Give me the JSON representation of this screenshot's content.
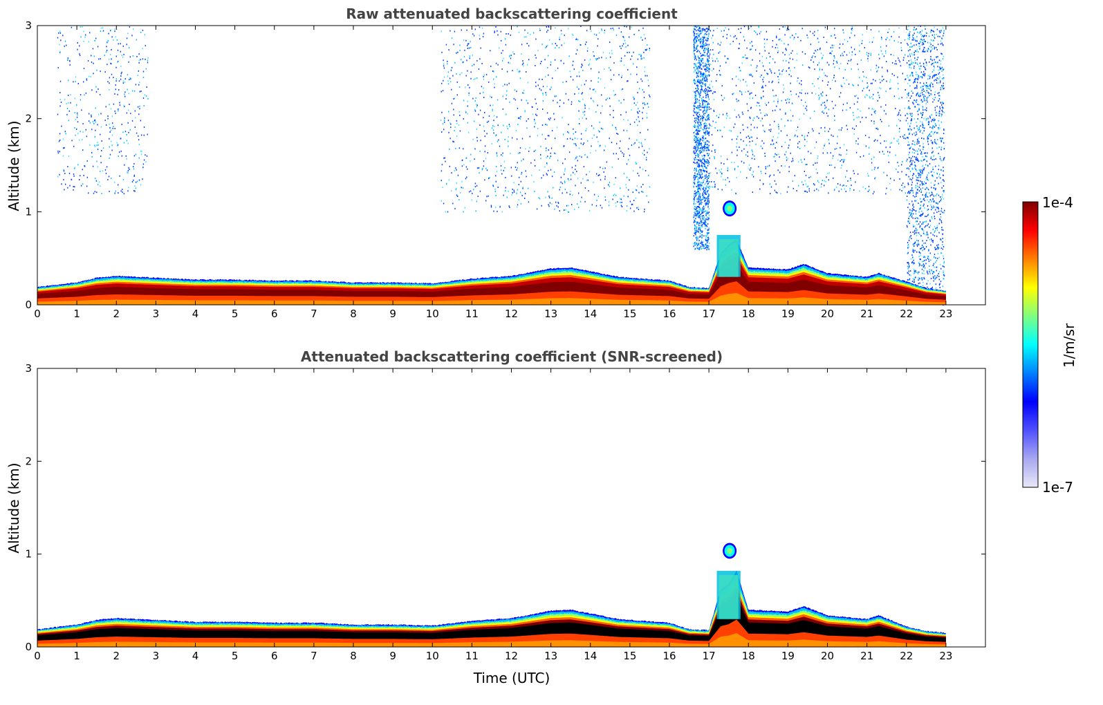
{
  "chart_data": [
    {
      "type": "heatmap",
      "title": "Raw attenuated backscattering coefficient",
      "xlabel": "",
      "ylabel": "Altitude (km)",
      "xlim": [
        0,
        24
      ],
      "ylim": [
        0,
        3
      ],
      "xticks": [
        0,
        1,
        2,
        3,
        4,
        5,
        6,
        7,
        8,
        9,
        10,
        11,
        12,
        13,
        14,
        15,
        16,
        17,
        18,
        19,
        20,
        21,
        22,
        23
      ],
      "yticks": [
        0,
        1,
        2,
        3
      ],
      "data_end_time": 23,
      "boundary_layer_top_km": [
        [
          0,
          0.19
        ],
        [
          1,
          0.24
        ],
        [
          1.5,
          0.29
        ],
        [
          2,
          0.31
        ],
        [
          3,
          0.29
        ],
        [
          4,
          0.27
        ],
        [
          5,
          0.27
        ],
        [
          6,
          0.26
        ],
        [
          7,
          0.26
        ],
        [
          8,
          0.24
        ],
        [
          9,
          0.24
        ],
        [
          10,
          0.23
        ],
        [
          11,
          0.28
        ],
        [
          12,
          0.31
        ],
        [
          13,
          0.39
        ],
        [
          13.5,
          0.4
        ],
        [
          14,
          0.36
        ],
        [
          14.7,
          0.3
        ],
        [
          15,
          0.29
        ],
        [
          16,
          0.26
        ],
        [
          16.5,
          0.19
        ],
        [
          17,
          0.18
        ],
        [
          17.3,
          0.55
        ],
        [
          17.5,
          0.65
        ],
        [
          17.7,
          0.7
        ],
        [
          18,
          0.4
        ],
        [
          19,
          0.38
        ],
        [
          19.4,
          0.44
        ],
        [
          20,
          0.34
        ],
        [
          21,
          0.3
        ],
        [
          21.3,
          0.34
        ],
        [
          22,
          0.25
        ],
        [
          22.5,
          0.18
        ],
        [
          23,
          0.15
        ]
      ],
      "noise_regions": [
        {
          "t_start": 0.5,
          "t_end": 2.8,
          "z_min": 1.2,
          "z_max": 3,
          "density": "low"
        },
        {
          "t_start": 10.2,
          "t_end": 15.5,
          "z_min": 1.0,
          "z_max": 3,
          "density": "medium"
        },
        {
          "t_start": 16.6,
          "t_end": 17.0,
          "z_min": 0.6,
          "z_max": 3,
          "density": "high"
        },
        {
          "t_start": 17.0,
          "t_end": 22.0,
          "z_min": 1.2,
          "z_max": 3,
          "density": "medium"
        },
        {
          "t_start": 22.0,
          "t_end": 22.95,
          "z_min": 0.0,
          "z_max": 3,
          "density": "high"
        }
      ],
      "features": [
        {
          "name": "cloud",
          "t_start": 17.35,
          "t_end": 17.7,
          "z_min": 0.95,
          "z_max": 1.12
        },
        {
          "name": "plume",
          "t_start": 17.2,
          "t_end": 17.8,
          "z_min": 0.3,
          "z_max": 0.75
        }
      ]
    },
    {
      "type": "heatmap",
      "title": "Attenuated backscattering coefficient (SNR-screened)",
      "xlabel": "Time (UTC)",
      "ylabel": "Altitude (km)",
      "xlim": [
        0,
        24
      ],
      "ylim": [
        0,
        3
      ],
      "xticks": [
        0,
        1,
        2,
        3,
        4,
        5,
        6,
        7,
        8,
        9,
        10,
        11,
        12,
        13,
        14,
        15,
        16,
        17,
        18,
        19,
        20,
        21,
        22,
        23
      ],
      "yticks": [
        0,
        1,
        2,
        3
      ],
      "data_end_time": 23,
      "boundary_layer_top_km": [
        [
          0,
          0.19
        ],
        [
          1,
          0.24
        ],
        [
          1.5,
          0.29
        ],
        [
          2,
          0.31
        ],
        [
          3,
          0.29
        ],
        [
          4,
          0.27
        ],
        [
          5,
          0.27
        ],
        [
          6,
          0.26
        ],
        [
          7,
          0.26
        ],
        [
          8,
          0.24
        ],
        [
          9,
          0.24
        ],
        [
          10,
          0.23
        ],
        [
          11,
          0.28
        ],
        [
          12,
          0.31
        ],
        [
          13,
          0.39
        ],
        [
          13.5,
          0.4
        ],
        [
          14,
          0.36
        ],
        [
          14.7,
          0.3
        ],
        [
          15,
          0.29
        ],
        [
          16,
          0.26
        ],
        [
          16.5,
          0.19
        ],
        [
          17,
          0.18
        ],
        [
          17.3,
          0.62
        ],
        [
          17.5,
          0.68
        ],
        [
          17.7,
          0.82
        ],
        [
          18,
          0.4
        ],
        [
          19,
          0.38
        ],
        [
          19.4,
          0.44
        ],
        [
          20,
          0.34
        ],
        [
          21,
          0.3
        ],
        [
          21.3,
          0.34
        ],
        [
          22,
          0.22
        ],
        [
          22.5,
          0.17
        ],
        [
          23,
          0.15
        ]
      ],
      "noise_regions": [],
      "features": [
        {
          "name": "cloud",
          "t_start": 17.35,
          "t_end": 17.7,
          "z_min": 0.95,
          "z_max": 1.12
        },
        {
          "name": "plume",
          "t_start": 17.2,
          "t_end": 17.8,
          "z_min": 0.3,
          "z_max": 0.82
        }
      ]
    }
  ],
  "colorbar": {
    "label": "1/m/sr",
    "max_label": "1e-4",
    "min_label": "1e-7",
    "scale": "log",
    "colors": [
      "#e8e8f8",
      "#a8a8f0",
      "#5050ff",
      "#0000ff",
      "#0080ff",
      "#00ffff",
      "#80ff80",
      "#ffff00",
      "#ff8000",
      "#ff0000",
      "#800000"
    ]
  }
}
